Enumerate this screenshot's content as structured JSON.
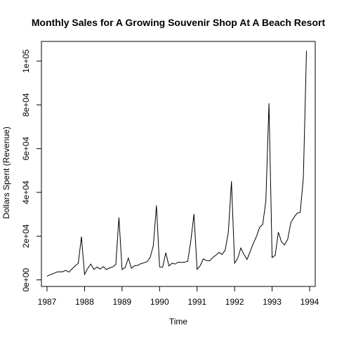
{
  "chart_data": {
    "type": "line",
    "title": "Monthly Sales for A Growing Souvenir Shop At A Beach Resort",
    "xlabel": "Time",
    "ylabel": "Dollars Spent (Revenue)",
    "xlim": [
      1986.85,
      1994.15
    ],
    "ylim": [
      -3000,
      109000
    ],
    "x_ticks": [
      1987,
      1988,
      1989,
      1990,
      1991,
      1992,
      1993,
      1994
    ],
    "x_tick_labels": [
      "1987",
      "1988",
      "1989",
      "1990",
      "1991",
      "1992",
      "1993",
      "1994"
    ],
    "y_ticks": [
      0,
      20000,
      40000,
      60000,
      80000,
      100000
    ],
    "y_tick_labels": [
      "0e+00",
      "2e+04",
      "4e+04",
      "6e+04",
      "8e+04",
      "1e+05"
    ],
    "grid": false,
    "series": [
      {
        "start": 1987.0,
        "frequency": 12,
        "values": [
          1664,
          2398,
          2840,
          3547,
          3753,
          3715,
          4350,
          3567,
          5022,
          6424,
          7600,
          19757,
          2499,
          5198,
          7225,
          4807,
          5900,
          4952,
          6062,
          4752,
          5467,
          5915,
          7060,
          28541,
          4717,
          5703,
          9958,
          5305,
          6493,
          6631,
          7397,
          7804,
          8315,
          10254,
          15705,
          34070,
          5921,
          5815,
          12421,
          6369,
          7610,
          7224,
          8121,
          7979,
          8093,
          8476,
          17915,
          30114,
          4827,
          6470,
          9639,
          8821,
          8722,
          10209,
          11276,
          12552,
          11637,
          13607,
          21823,
          45060,
          7615,
          9849,
          14558,
          11587,
          9333,
          13082,
          16732,
          19888,
          23933,
          25391,
          36024,
          80721,
          10243,
          11266,
          21826,
          17357,
          15997,
          18601,
          26155,
          28586,
          30505,
          30821,
          46634,
          104661
        ]
      }
    ]
  }
}
